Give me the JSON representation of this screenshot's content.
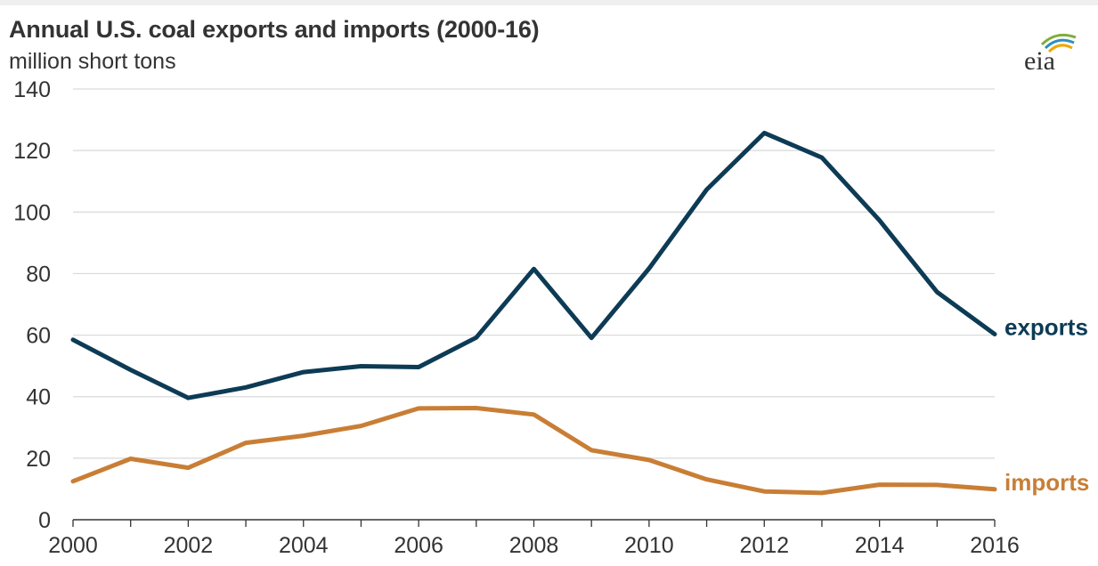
{
  "chart_data": {
    "type": "line",
    "title": "Annual U.S. coal exports and imports (2000-16)",
    "ylabel": "million short tons",
    "xlabel": "",
    "x": [
      2000,
      2001,
      2002,
      2003,
      2004,
      2005,
      2006,
      2007,
      2008,
      2009,
      2010,
      2011,
      2012,
      2013,
      2014,
      2015,
      2016
    ],
    "x_ticks": [
      2000,
      2002,
      2004,
      2006,
      2008,
      2010,
      2012,
      2014,
      2016
    ],
    "y_ticks": [
      0,
      20,
      40,
      60,
      80,
      100,
      120,
      140
    ],
    "xlim": [
      2000,
      2016
    ],
    "ylim": [
      0,
      140
    ],
    "grid": "horizontal",
    "legend": "direct labels at right end of lines",
    "series": [
      {
        "name": "exports",
        "color": "#0d3b55",
        "values": [
          58.5,
          48.7,
          39.6,
          43.0,
          48.0,
          49.9,
          49.6,
          59.2,
          81.5,
          59.1,
          81.7,
          107.3,
          125.7,
          117.7,
          97.3,
          74.0,
          60.3
        ]
      },
      {
        "name": "imports",
        "color": "#c97e35",
        "values": [
          12.5,
          19.8,
          16.9,
          25.0,
          27.3,
          30.5,
          36.2,
          36.3,
          34.2,
          22.6,
          19.4,
          13.1,
          9.2,
          8.7,
          11.4,
          11.3,
          9.9
        ]
      }
    ]
  },
  "logo_text": "eia"
}
